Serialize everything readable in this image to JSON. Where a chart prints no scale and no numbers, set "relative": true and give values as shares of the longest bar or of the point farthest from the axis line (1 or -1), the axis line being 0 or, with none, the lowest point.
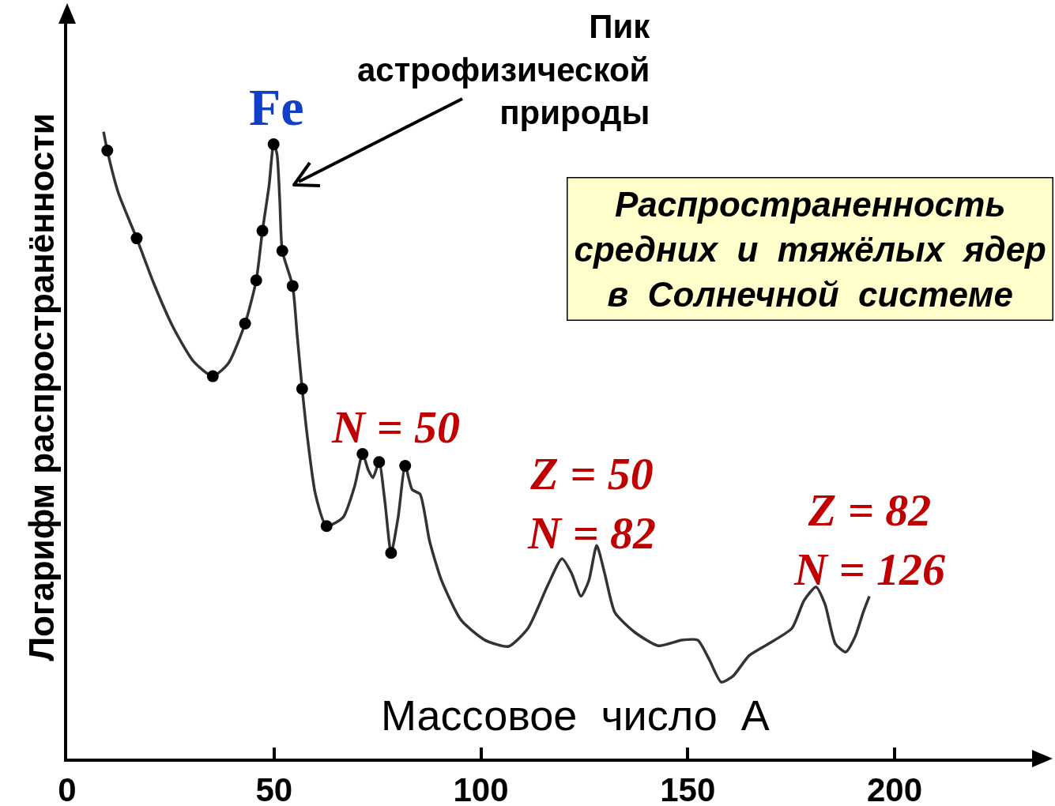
{
  "chart_data": {
    "type": "line",
    "title": "Распространенность\nсредних  и  тяжёлых  ядер\nв  Солнечной  системе",
    "xlabel": "Массовое  число  A",
    "ylabel": "Логарифм распространённости",
    "relative": true,
    "xlim": [
      0,
      234
    ],
    "xticks": [
      0,
      50,
      100,
      150,
      200
    ],
    "grid": false,
    "annotations": [
      "Fe",
      "Пик\nастрофизической\nприроды",
      "N = 50",
      "Z = 50\nN = 82",
      "Z = 82\nN = 126"
    ],
    "series": [
      {
        "color": "#333333",
        "marker": "none",
        "x": [
          8.8,
          9.7,
          12.4,
          16.8,
          21.0,
          25.7,
          30.5,
          35.2,
          39.0,
          43.0,
          45.7,
          47.2,
          48.8,
          49.9,
          50.7,
          51.4,
          52.0,
          54.5,
          55.6,
          56.8,
          58.1,
          60.0,
          62.7,
          66.7,
          69.5,
          71.4,
          72.8,
          73.9,
          75.4,
          76.8,
          78.3,
          80.0,
          81.7,
          83.4,
          85.3,
          87.6,
          90.5,
          95.2,
          101.0,
          106.7,
          111.4,
          116.2,
          119.6,
          121.9,
          124.2,
          126.1,
          128.0,
          129.9,
          132.4,
          137.1,
          142.9,
          148.6,
          152.4,
          155.2,
          158.1,
          161.0,
          164.8,
          169.5,
          175.2,
          178.1,
          181.0,
          183.2,
          185.7,
          188.2,
          190.5,
          192.4,
          193.9
        ],
        "values": [
          1.0,
          0.97,
          0.902,
          0.83,
          0.757,
          0.687,
          0.634,
          0.61,
          0.631,
          0.694,
          0.763,
          0.842,
          0.914,
          0.98,
          0.965,
          0.889,
          0.81,
          0.754,
          0.675,
          0.59,
          0.511,
          0.422,
          0.371,
          0.385,
          0.435,
          0.486,
          0.46,
          0.448,
          0.473,
          0.41,
          0.328,
          0.385,
          0.467,
          0.429,
          0.422,
          0.347,
          0.284,
          0.221,
          0.189,
          0.179,
          0.208,
          0.277,
          0.319,
          0.296,
          0.259,
          0.284,
          0.34,
          0.296,
          0.233,
          0.202,
          0.18,
          0.189,
          0.189,
          0.158,
          0.122,
          0.132,
          0.164,
          0.183,
          0.208,
          0.252,
          0.274,
          0.246,
          0.183,
          0.17,
          0.195,
          0.233,
          0.259
        ]
      },
      {
        "type": "scatter",
        "color": "#000000",
        "marker": "circle",
        "x": [
          9.7,
          16.8,
          35.2,
          43.0,
          45.7,
          47.2,
          49.9,
          52.0,
          54.5,
          56.8,
          62.7,
          71.4,
          75.4,
          78.3,
          81.7
        ],
        "values": [
          0.97,
          0.83,
          0.61,
          0.694,
          0.763,
          0.842,
          0.98,
          0.81,
          0.754,
          0.59,
          0.371,
          0.486,
          0.473,
          0.328,
          0.467
        ]
      }
    ]
  }
}
